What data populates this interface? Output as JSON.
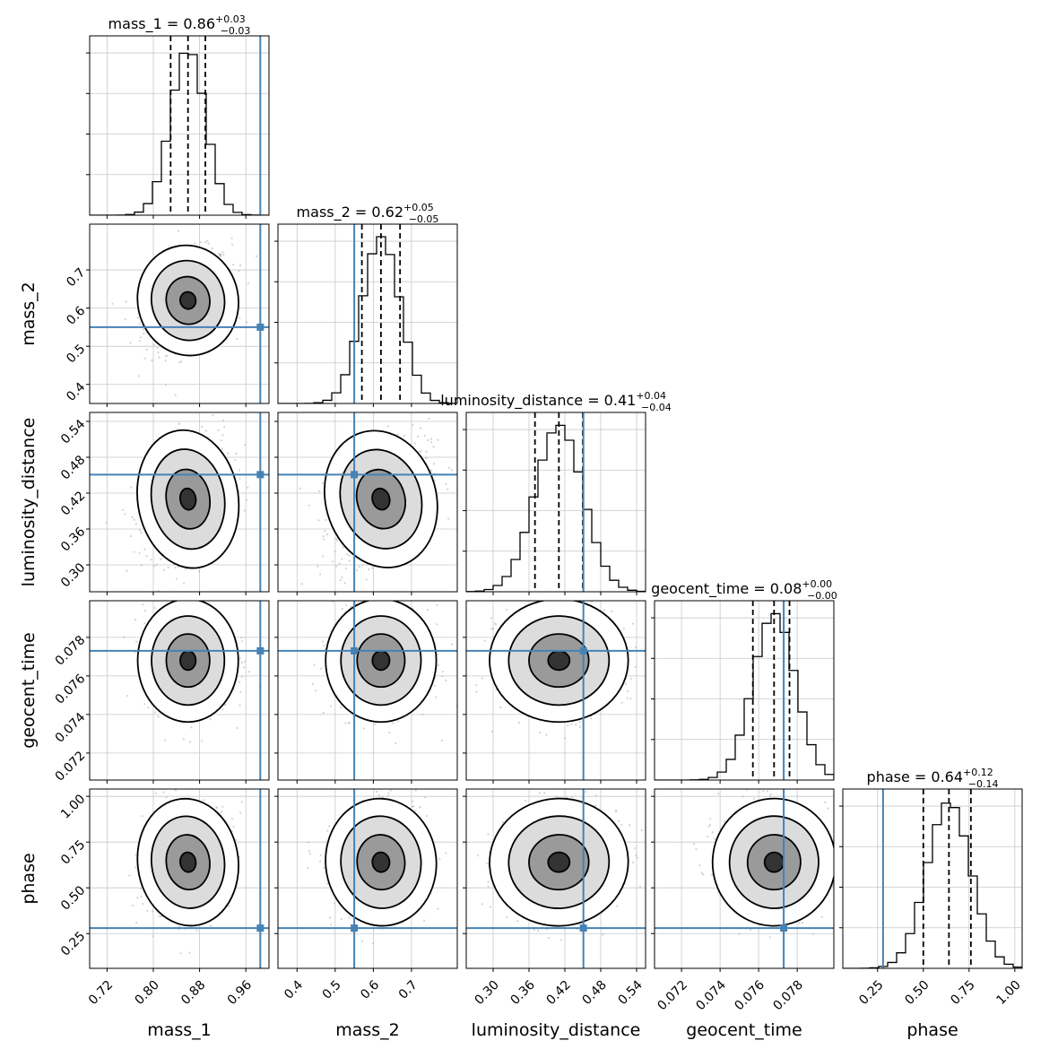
{
  "chart_data": {
    "type": "corner",
    "parameters": [
      "mass_1",
      "mass_2",
      "luminosity_distance",
      "geocent_time",
      "phase"
    ],
    "ranges": {
      "mass_1": [
        0.69,
        1.0
      ],
      "mass_2": [
        0.35,
        0.82
      ],
      "luminosity_distance": [
        0.255,
        0.555
      ],
      "geocent_time": [
        0.0706,
        0.0799
      ],
      "phase": [
        0.06,
        1.04
      ]
    },
    "ticks": {
      "mass_1": [
        "0.72",
        "0.80",
        "0.88",
        "0.96"
      ],
      "mass_2": [
        "0.4",
        "0.5",
        "0.6",
        "0.7"
      ],
      "luminosity_distance": [
        "0.30",
        "0.36",
        "0.42",
        "0.48",
        "0.54"
      ],
      "geocent_time": [
        "0.072",
        "0.074",
        "0.076",
        "0.078"
      ],
      "phase": [
        "0.25",
        "0.50",
        "0.75",
        "1.00"
      ]
    },
    "titles": [
      {
        "param": "mass_1",
        "text": "mass_1 = 0.86",
        "plus": "+0.03",
        "minus": "−0.03"
      },
      {
        "param": "mass_2",
        "text": "mass_2 = 0.62",
        "plus": "+0.05",
        "minus": "−0.05"
      },
      {
        "param": "luminosity_distance",
        "text": "luminosity_distance = 0.41",
        "plus": "+0.04",
        "minus": "−0.04"
      },
      {
        "param": "geocent_time",
        "text": "geocent_time = 0.08",
        "plus": "+0.00",
        "minus": "−0.00"
      },
      {
        "param": "phase",
        "text": "phase = 0.64",
        "plus": "+0.12",
        "minus": "−0.14"
      }
    ],
    "quantiles": {
      "mass_1": [
        0.83,
        0.86,
        0.89
      ],
      "mass_2": [
        0.57,
        0.62,
        0.67
      ],
      "luminosity_distance": [
        0.37,
        0.41,
        0.45
      ],
      "geocent_time": [
        0.0757,
        0.0768,
        0.0776
      ],
      "phase": [
        0.5,
        0.64,
        0.76
      ]
    },
    "truths": {
      "mass_1": 0.985,
      "mass_2": 0.55,
      "luminosity_distance": 0.451,
      "geocent_time": 0.0773,
      "phase": 0.28
    },
    "means": {
      "mass_1": 0.86,
      "mass_2": 0.62,
      "luminosity_distance": 0.41,
      "geocent_time": 0.0768,
      "phase": 0.64
    },
    "sds": {
      "mass_1": 0.03,
      "mass_2": 0.05,
      "luminosity_distance": 0.04,
      "geocent_time": 0.0011,
      "phase": 0.12
    },
    "correlations": [
      [
        0,
        1,
        0.35
      ],
      [
        0,
        2,
        0.25
      ],
      [
        1,
        2,
        0.45
      ],
      [
        0,
        4,
        0.2
      ],
      [
        1,
        4,
        0.15
      ],
      [
        2,
        4,
        0.1
      ],
      [
        3,
        4,
        -0.1
      ]
    ],
    "grid": true,
    "truth_color": "#4682b4",
    "contour_color": "#000000",
    "point_color": "#b4b4b4"
  }
}
